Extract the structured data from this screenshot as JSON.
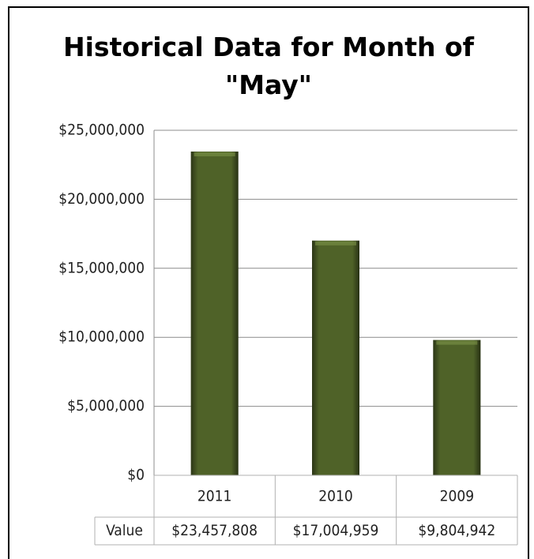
{
  "chart_data": {
    "type": "bar",
    "title": "Historical Data for Month of \"May\"",
    "categories": [
      "2011",
      "2010",
      "2009"
    ],
    "series": [
      {
        "name": "Value",
        "color": "#4f6228",
        "values": [
          23457808,
          17004959,
          9804942
        ],
        "value_labels": [
          "$23,457,808",
          "$17,004,959",
          "$9,804,942"
        ]
      }
    ],
    "ylim": [
      0,
      25000000
    ],
    "yticks": [
      {
        "value": 0,
        "label": "$0"
      },
      {
        "value": 5000000,
        "label": "$5,000,000"
      },
      {
        "value": 10000000,
        "label": "$10,000,000"
      },
      {
        "value": 15000000,
        "label": "$15,000,000"
      },
      {
        "value": 20000000,
        "label": "$20,000,000"
      },
      {
        "value": 25000000,
        "label": "$25,000,000"
      }
    ],
    "grid": true,
    "data_table": true
  }
}
